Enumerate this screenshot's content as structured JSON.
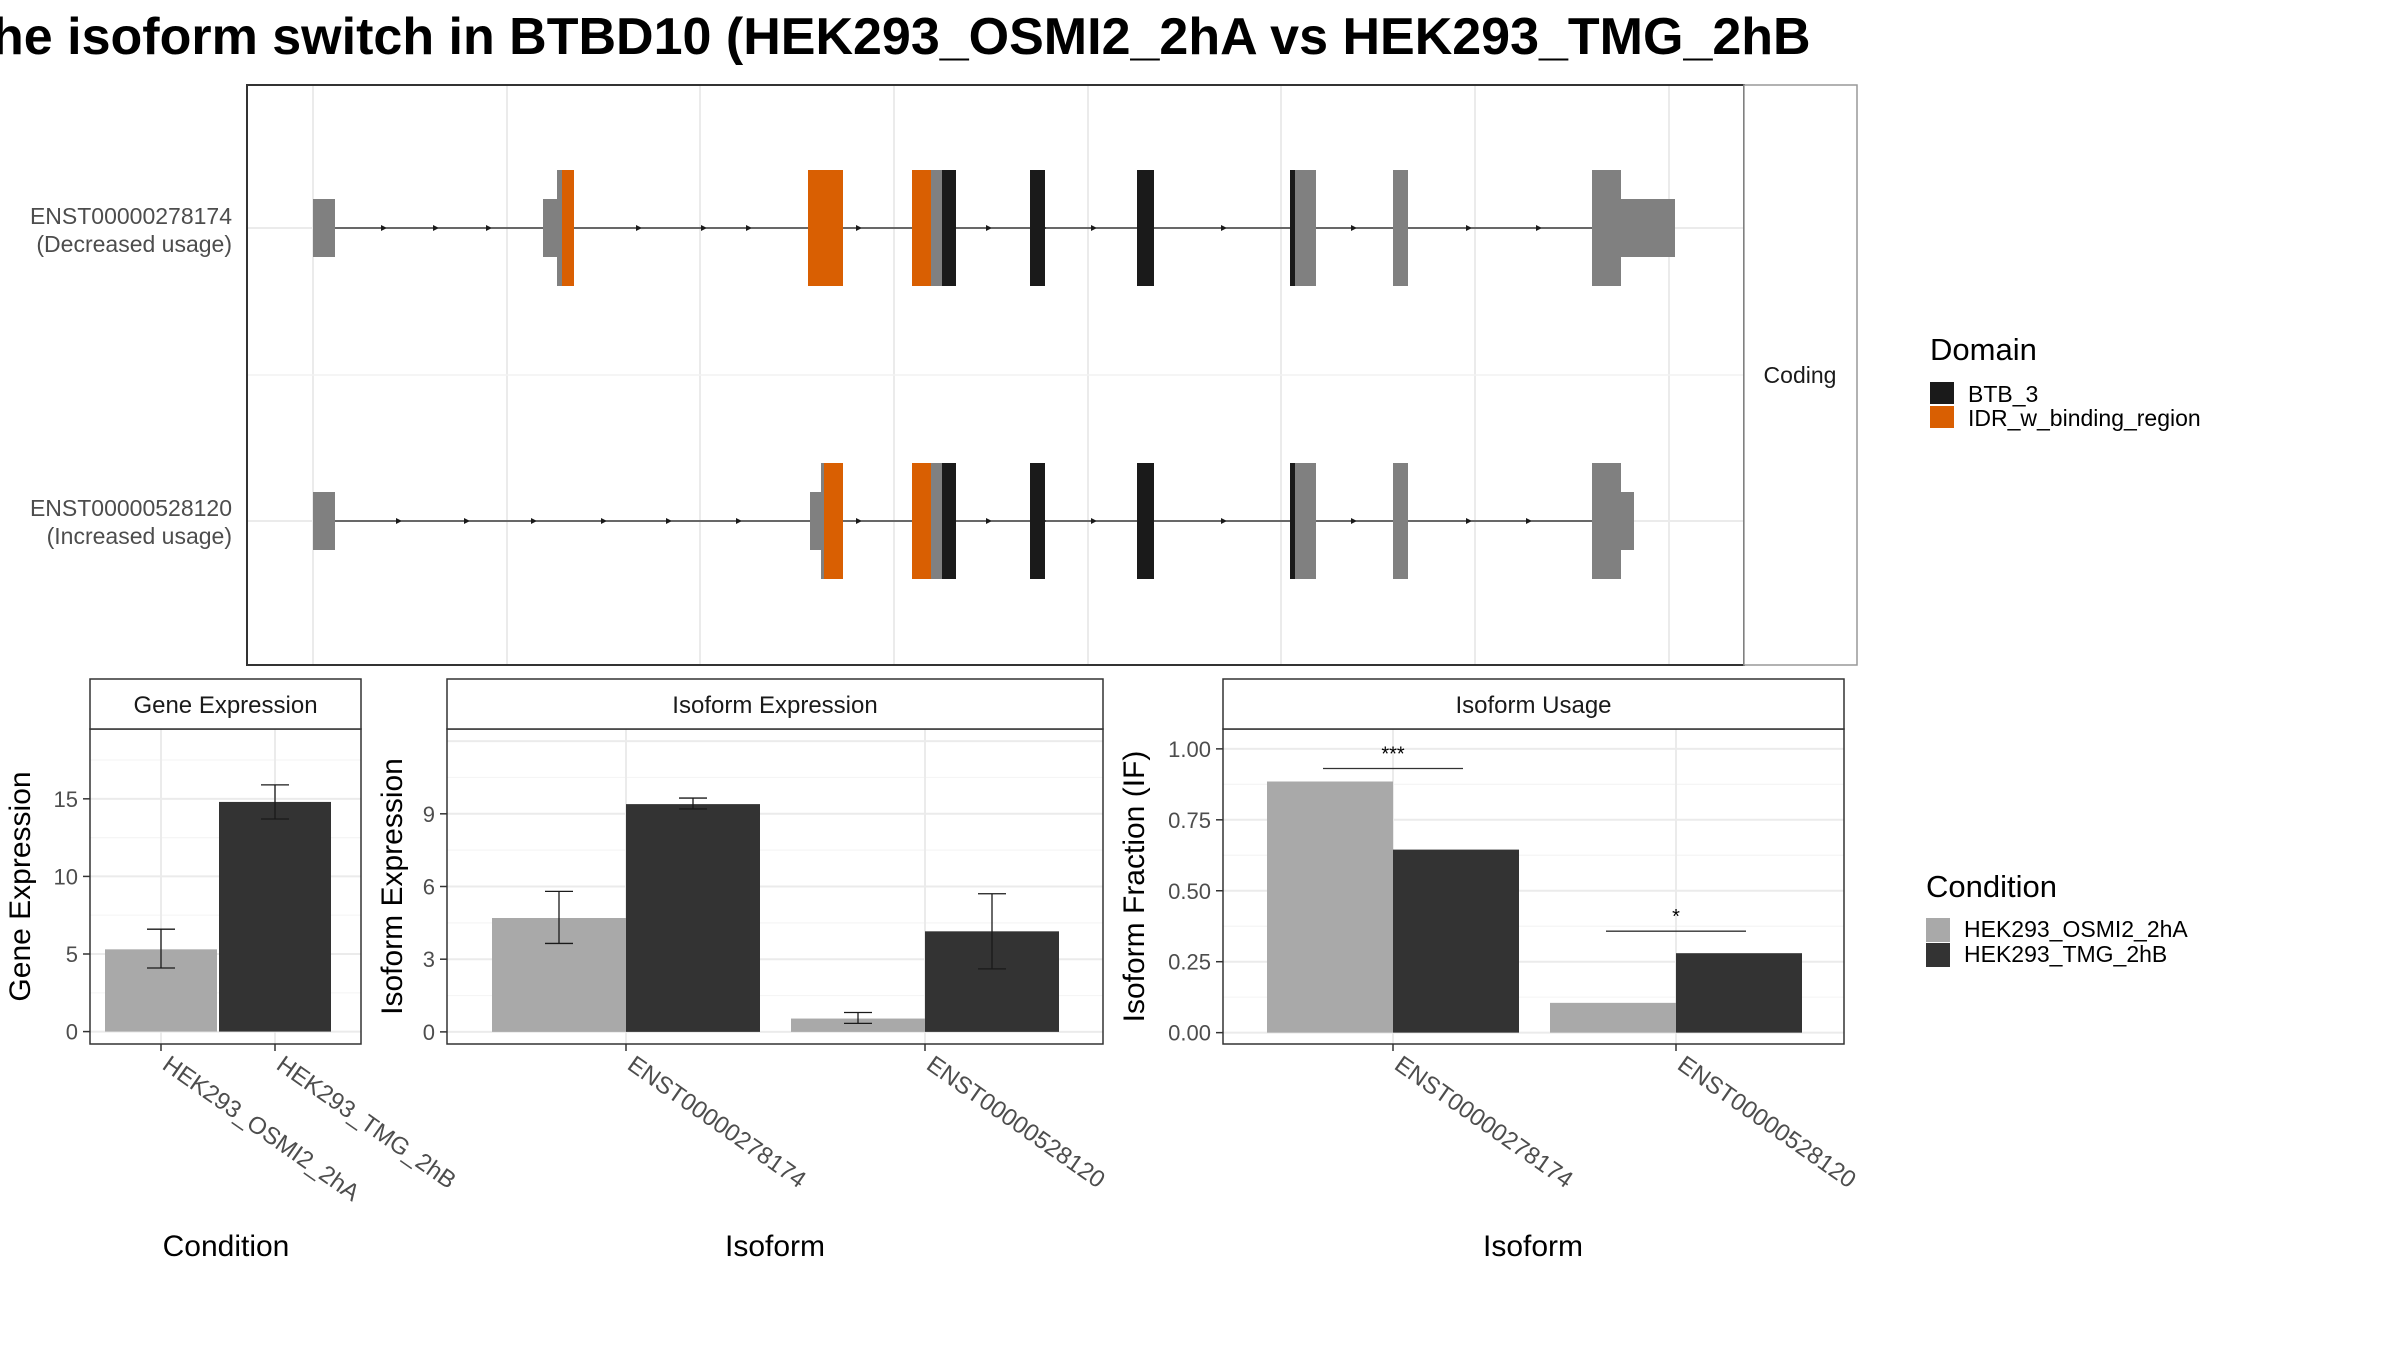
{
  "title": "he isoform switch in BTBD10 (HEK293_OSMI2_2hA vs HEK293_TMG_2hB",
  "colors": {
    "cond_a": "#a9a9a9",
    "cond_b": "#333333",
    "btb": "#1a1a1a",
    "idr": "#d95f02",
    "exon": "#808080",
    "grid": "#ebebeb",
    "panel_border": "#333333",
    "strip_border": "#999999"
  },
  "transcripts": {
    "strip_label": "Coding",
    "rows": [
      {
        "id": "ENST00000278174",
        "note": "(Decreased usage)"
      },
      {
        "id": "ENST00000528120",
        "note": "(Increased usage)"
      }
    ]
  },
  "domain_legend": {
    "title": "Domain",
    "items": [
      {
        "label": "BTB_3",
        "color": "#1a1a1a"
      },
      {
        "label": "IDR_w_binding_region",
        "color": "#d95f02"
      }
    ]
  },
  "condition_legend": {
    "title": "Condition",
    "items": [
      {
        "label": "HEK293_OSMI2_2hA",
        "color": "#a9a9a9"
      },
      {
        "label": "HEK293_TMG_2hB",
        "color": "#333333"
      }
    ]
  },
  "chart_data": [
    {
      "type": "bar",
      "title": "Gene Expression",
      "xlabel": "Condition",
      "ylabel": "Gene Expression",
      "categories": [
        "HEK293_OSMI2_2hA",
        "HEK293_TMG_2hB"
      ],
      "values": [
        5.3,
        14.8
      ],
      "errors": [
        [
          4.1,
          6.6
        ],
        [
          13.7,
          15.9
        ]
      ],
      "ylim": [
        -0.8,
        19.5
      ],
      "yticks": [
        0,
        5,
        10,
        15
      ],
      "grid": true
    },
    {
      "type": "bar",
      "title": "Isoform Expression",
      "xlabel": "Isoform",
      "ylabel": "Isoform Expression",
      "categories": [
        "ENST00000278174",
        "ENST00000528120"
      ],
      "series": [
        {
          "name": "HEK293_OSMI2_2hA",
          "values": [
            4.7,
            0.55
          ],
          "errors": [
            [
              3.65,
              5.8
            ],
            [
              0.35,
              0.8
            ]
          ]
        },
        {
          "name": "HEK293_TMG_2hB",
          "values": [
            9.4,
            4.15
          ],
          "errors": [
            [
              9.2,
              9.65
            ],
            [
              2.6,
              5.7
            ]
          ]
        }
      ],
      "ylim": [
        -0.5,
        12.5
      ],
      "yticks": [
        0,
        3,
        6,
        9
      ],
      "grid": true
    },
    {
      "type": "bar",
      "title": "Isoform Usage",
      "xlabel": "Isoform",
      "ylabel": "Isoform Fraction (IF)",
      "categories": [
        "ENST00000278174",
        "ENST00000528120"
      ],
      "series": [
        {
          "name": "HEK293_OSMI2_2hA",
          "values": [
            0.885,
            0.105
          ]
        },
        {
          "name": "HEK293_TMG_2hB",
          "values": [
            0.645,
            0.28
          ]
        }
      ],
      "significance": [
        "***",
        "*"
      ],
      "ylim": [
        -0.04,
        1.07
      ],
      "yticks": [
        0,
        0.25,
        0.5,
        0.75,
        1.0
      ],
      "ytick_labels": [
        "0.00",
        "0.25",
        "0.50",
        "0.75",
        "1.00"
      ],
      "grid": true
    }
  ]
}
